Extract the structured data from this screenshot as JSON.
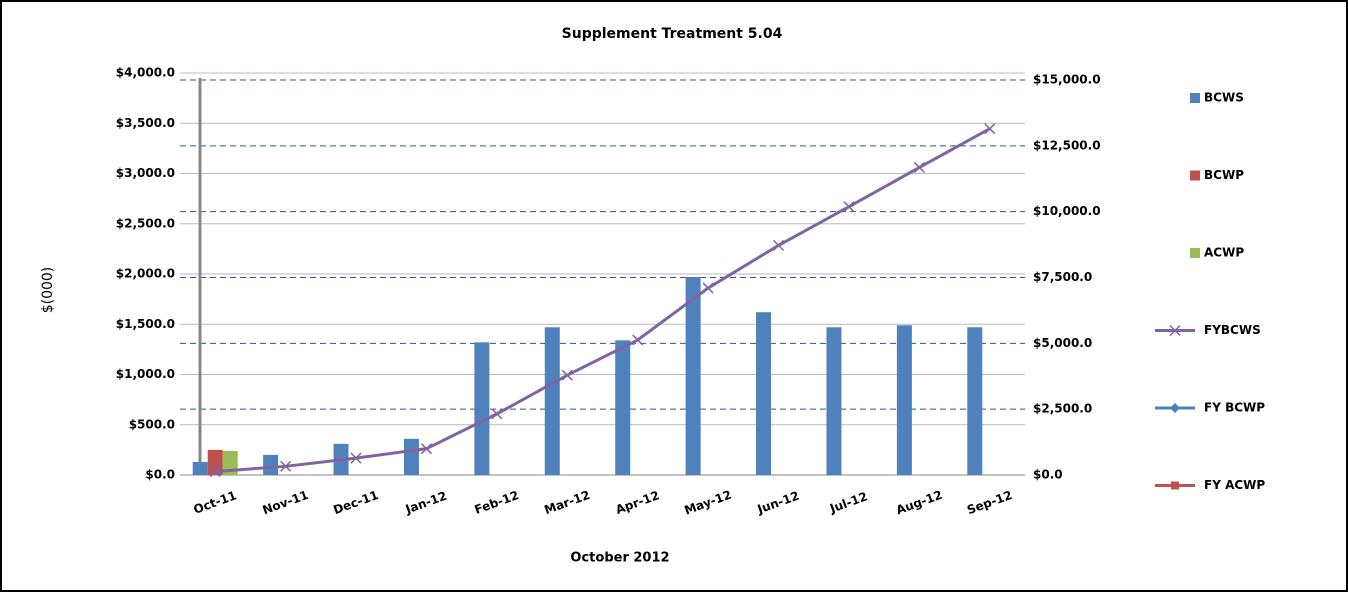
{
  "chart_data": {
    "type": "bar_line",
    "title": "Supplement Treatment 5.04",
    "x_label": "October 2012",
    "y_label": "$(000)",
    "categories": [
      "Oct-11",
      "Nov-11",
      "Dec-11",
      "Jan-12",
      "Feb-12",
      "Mar-12",
      "Apr-12",
      "May-12",
      "Jun-12",
      "Jul-12",
      "Aug-12",
      "Sep-12"
    ],
    "series": [
      {
        "name": "BCWS",
        "type": "bar",
        "color": "#4f81bd",
        "values": [
          130,
          200,
          310,
          360,
          1320,
          1470,
          1340,
          1970,
          1620,
          1470,
          1490,
          1470
        ]
      },
      {
        "name": "BCWP",
        "type": "bar",
        "color": "#c0504d",
        "values": [
          250,
          null,
          null,
          null,
          null,
          null,
          null,
          null,
          null,
          null,
          null,
          null
        ]
      },
      {
        "name": "ACWP",
        "type": "bar",
        "color": "#9bbb59",
        "values": [
          240,
          null,
          null,
          null,
          null,
          null,
          null,
          null,
          null,
          null,
          null,
          null
        ]
      },
      {
        "name": "FYBCWS",
        "type": "line",
        "axis": "y2",
        "marker": "x",
        "color": "#8064a2",
        "values": [
          130,
          330,
          640,
          1000,
          2320,
          3790,
          5130,
          7100,
          8720,
          10190,
          11680,
          13150
        ]
      },
      {
        "name": "FY BCWP",
        "type": "line",
        "axis": "y2",
        "marker": "diamond",
        "color": "#4f81bd",
        "values": [
          null,
          null,
          null,
          null,
          null,
          null,
          null,
          null,
          null,
          null,
          null,
          null
        ]
      },
      {
        "name": "FY ACWP",
        "type": "line",
        "axis": "y2",
        "marker": "square",
        "color": "#c0504d",
        "values": [
          null,
          null,
          null,
          null,
          null,
          null,
          null,
          null,
          null,
          null,
          null,
          null
        ]
      }
    ],
    "ylim": [
      0,
      4000
    ],
    "yticks": [
      {
        "value": 0,
        "label": "$0.0"
      },
      {
        "value": 500,
        "label": "$500.0"
      },
      {
        "value": 1000,
        "label": "$1,000.0"
      },
      {
        "value": 1500,
        "label": "$1,500.0"
      },
      {
        "value": 2000,
        "label": "$2,000.0"
      },
      {
        "value": 2500,
        "label": "$2,500.0"
      },
      {
        "value": 3000,
        "label": "$3,000.0"
      },
      {
        "value": 3500,
        "label": "$3,500.0"
      },
      {
        "value": 4000,
        "label": "$4,000.0"
      }
    ],
    "y2lim": [
      0,
      15000
    ],
    "y2ticks": [
      {
        "value": 0,
        "label": "$0.0"
      },
      {
        "value": 2500,
        "label": "$2,500.0"
      },
      {
        "value": 5000,
        "label": "$5,000.0"
      },
      {
        "value": 7500,
        "label": "$7,500.0"
      },
      {
        "value": 10000,
        "label": "$10,000.0"
      },
      {
        "value": 12500,
        "label": "$12,500.0"
      },
      {
        "value": 15000,
        "label": "$15,000.0"
      }
    ],
    "grid": true,
    "legend": "right"
  }
}
